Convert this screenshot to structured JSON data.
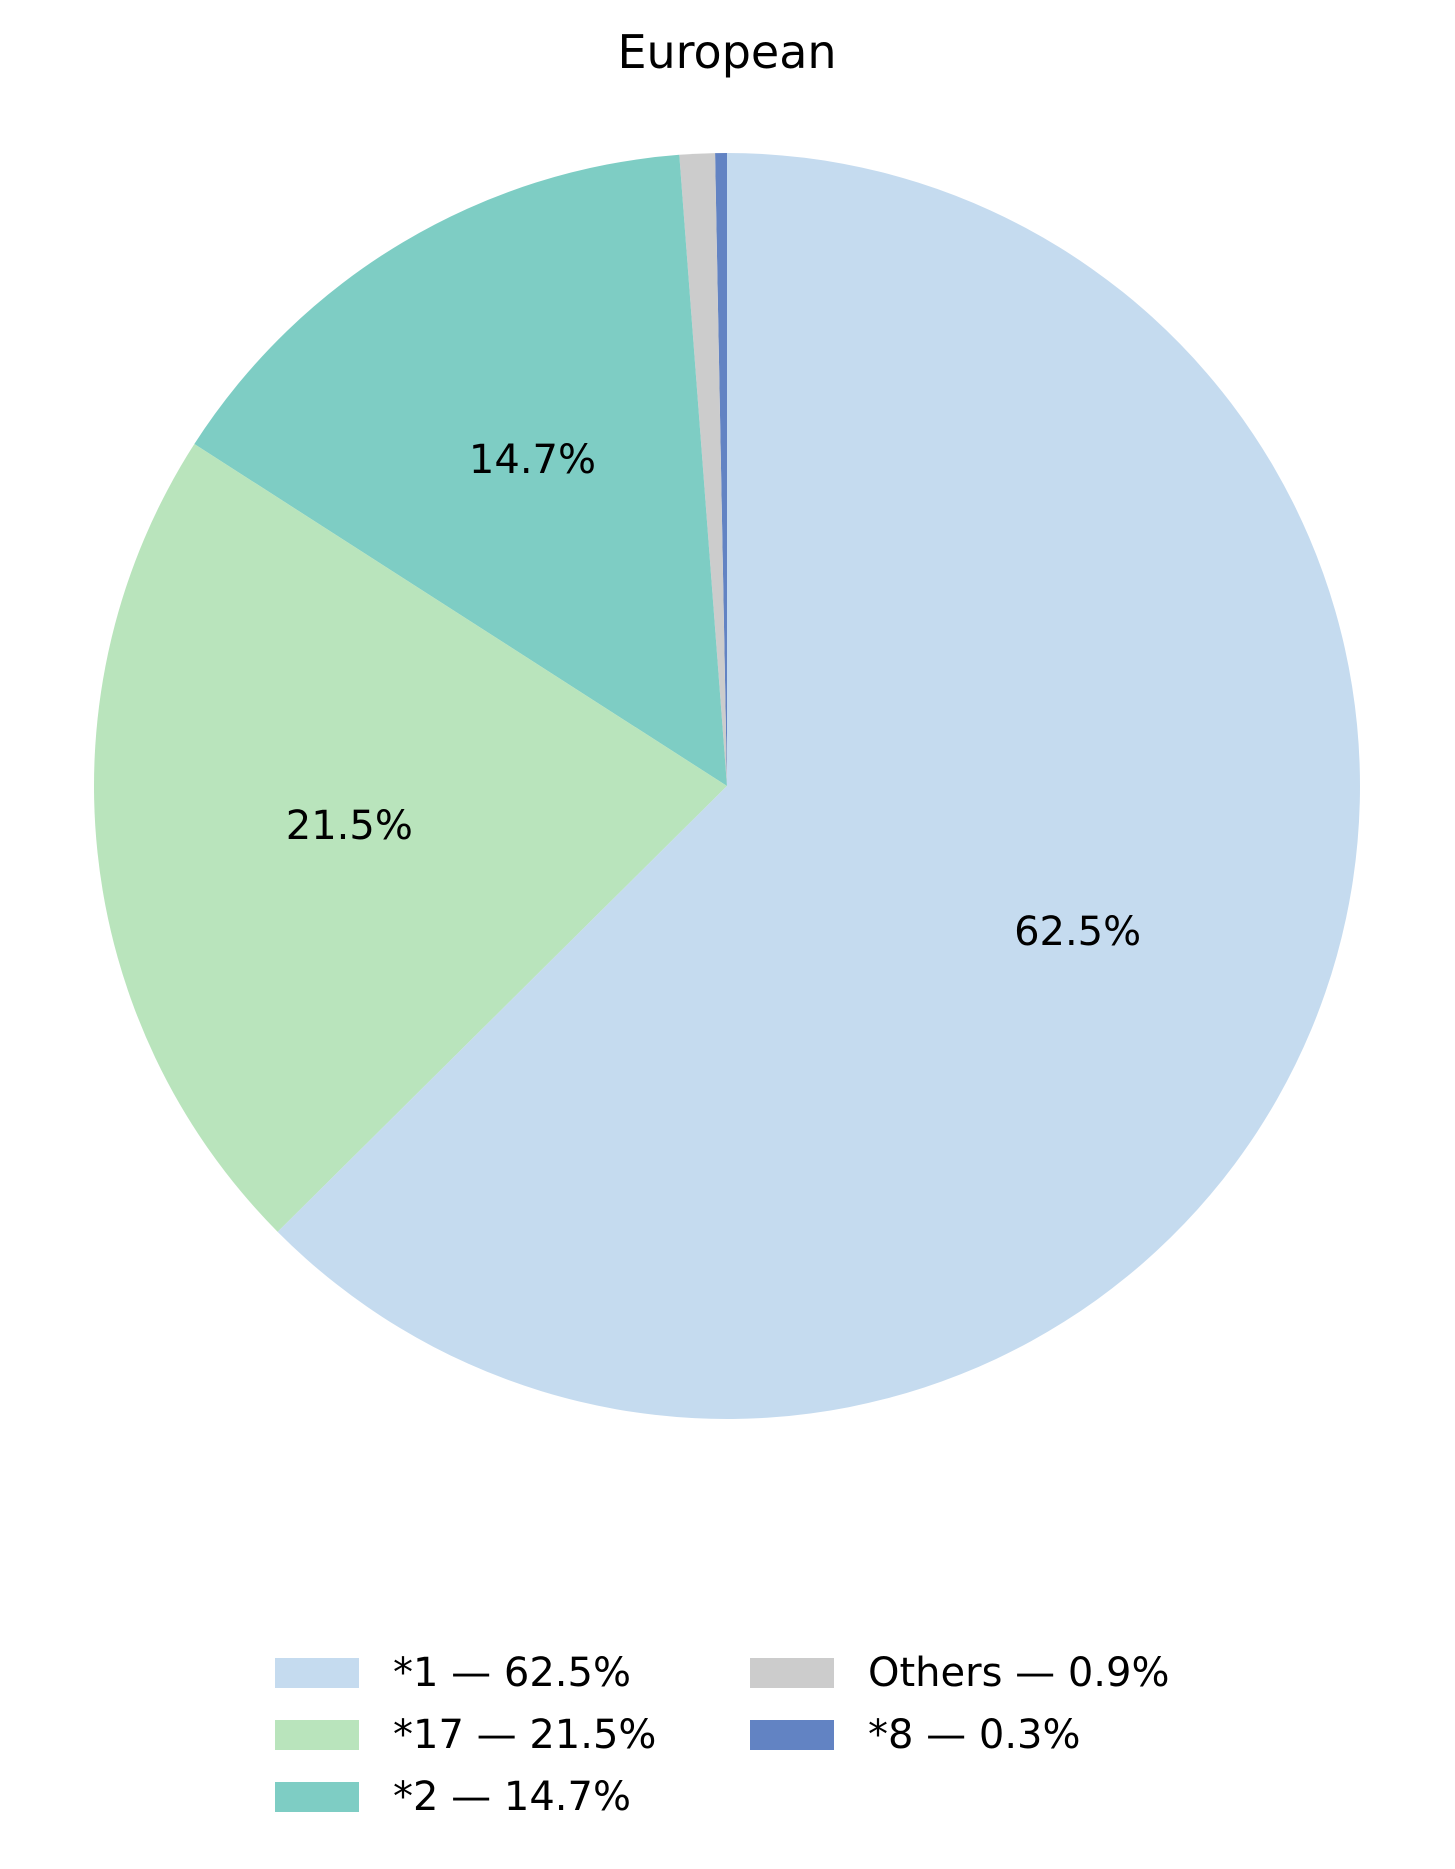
{
  "chart_data": {
    "type": "pie",
    "title": "European",
    "start_angle_deg": 90,
    "direction": "counterclockwise",
    "slices": [
      {
        "label": "*8",
        "value": 0.3,
        "pct_label": "",
        "legend": "*8 — 0.3%",
        "color": "#6283c3"
      },
      {
        "label": "Others",
        "value": 0.9,
        "pct_label": "",
        "legend": "Others — 0.9%",
        "color": "#cccccc"
      },
      {
        "label": "*2",
        "value": 14.7,
        "pct_label": "14.7%",
        "legend": "*2 — 14.7%",
        "color": "#7ecdc4"
      },
      {
        "label": "*17",
        "value": 21.5,
        "pct_label": "21.5%",
        "legend": "*17 — 21.5%",
        "color": "#b9e4bc"
      },
      {
        "label": "*1",
        "value": 62.5,
        "pct_label": "62.5%",
        "legend": "*1 — 62.5%",
        "color": "#c5dbef"
      }
    ],
    "legend": {
      "placement": "bottom-center",
      "columns": 2,
      "order": [
        "*1",
        "*17",
        "*2",
        "Others",
        "*8"
      ]
    }
  }
}
